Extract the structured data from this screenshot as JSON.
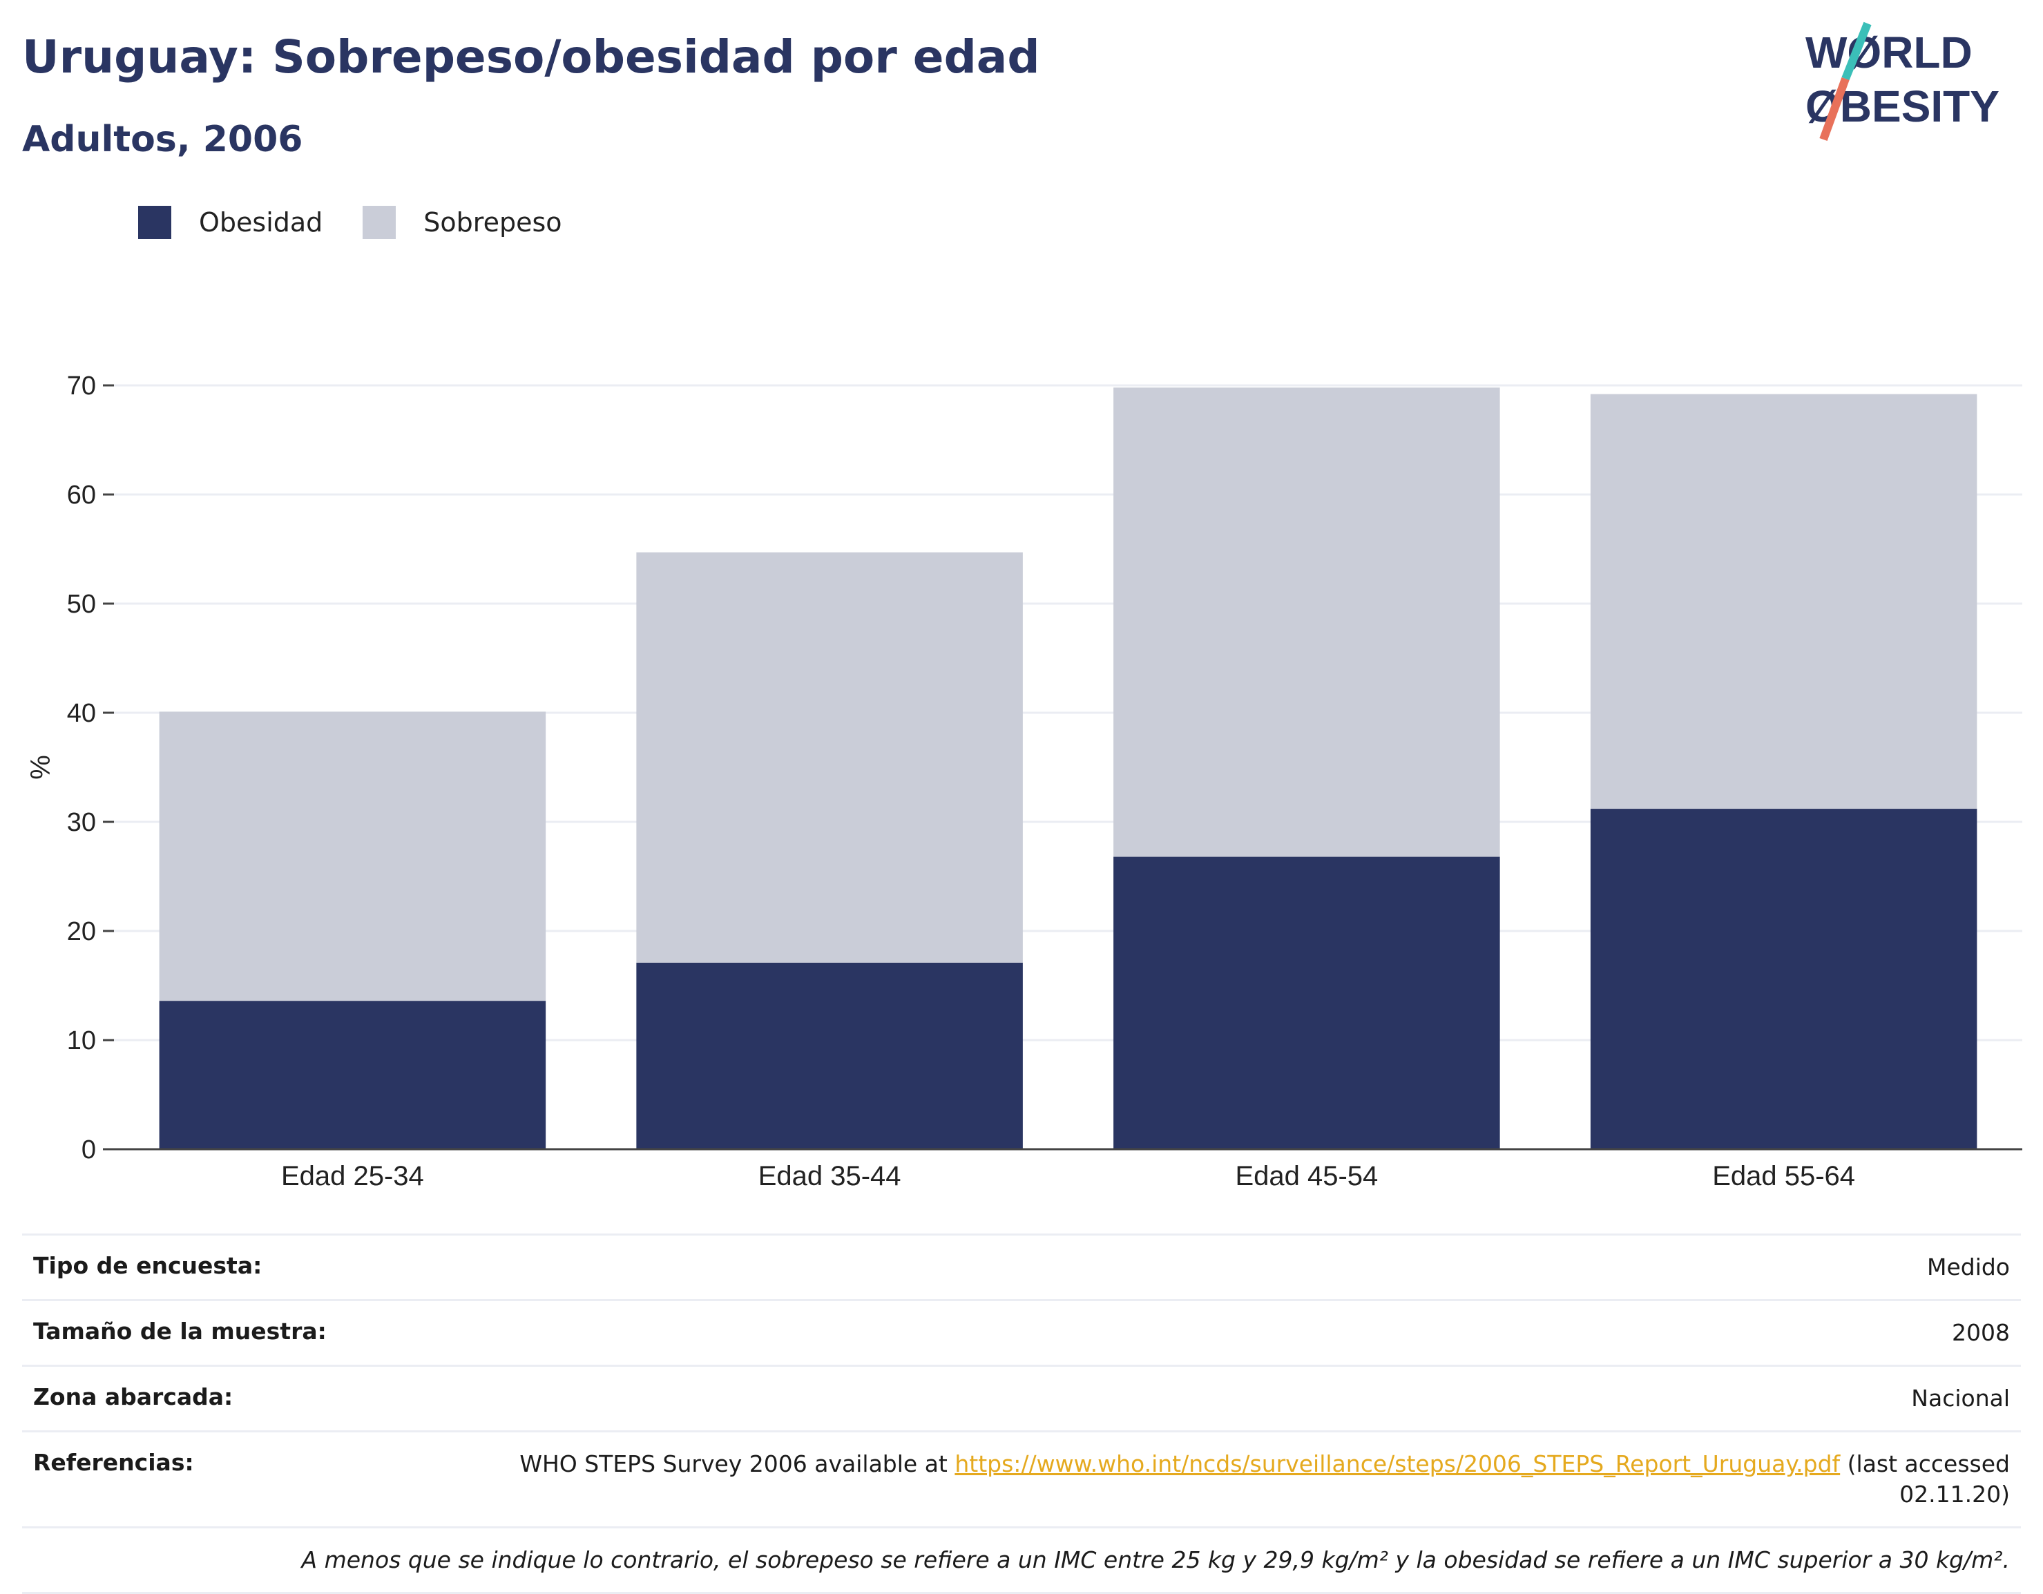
{
  "header": {
    "title": "Uruguay: Sobrepeso/obesidad por edad",
    "subtitle": "Adultos, 2006"
  },
  "logo": {
    "line1": "WØRLD",
    "line2": "ØBESITY",
    "colors": {
      "text": "#2a3562",
      "slash_top": "#3bbfb8",
      "slash_bottom": "#e8715a"
    }
  },
  "legend": {
    "obesity_label": "Obesidad",
    "overweight_label": "Sobrepeso"
  },
  "colors": {
    "obesity": "#2a3562",
    "overweight": "#cacdd8",
    "grid": "#ebedf3",
    "axis": "#444444"
  },
  "chart_data": {
    "type": "bar",
    "stacked": true,
    "categories": [
      "Edad 25-34",
      "Edad 35-44",
      "Edad 45-54",
      "Edad 55-64"
    ],
    "series": [
      {
        "name": "Obesidad",
        "values": [
          13.6,
          17.1,
          26.8,
          31.2
        ]
      },
      {
        "name": "Sobrepeso",
        "values": [
          26.5,
          37.6,
          43.0,
          38.0
        ]
      }
    ],
    "ylabel": "%",
    "xlabel": "",
    "ylim": [
      0,
      70
    ],
    "yticks": [
      0,
      10,
      20,
      30,
      40,
      50,
      60,
      70
    ],
    "grid": true,
    "legend_position": "top-left"
  },
  "info": {
    "survey_type": {
      "label": "Tipo de encuesta:",
      "value": "Medido"
    },
    "sample_size": {
      "label": "Tamaño de la muestra:",
      "value": "2008"
    },
    "area": {
      "label": "Zona abarcada:",
      "value": "Nacional"
    },
    "references": {
      "label": "Referencias:",
      "prefix": "WHO STEPS Survey 2006 available at ",
      "link": "https://www.who.int/ncds/surveillance/steps/2006_STEPS_Report_Uruguay.pdf",
      "suffix": " (last accessed 02.11.20)"
    },
    "note": "A menos que se indique lo contrario, el sobrepeso se refiere a un IMC entre 25 kg y 29,9 kg/m² y la obesidad se refiere a un IMC superior a 30 kg/m²."
  }
}
